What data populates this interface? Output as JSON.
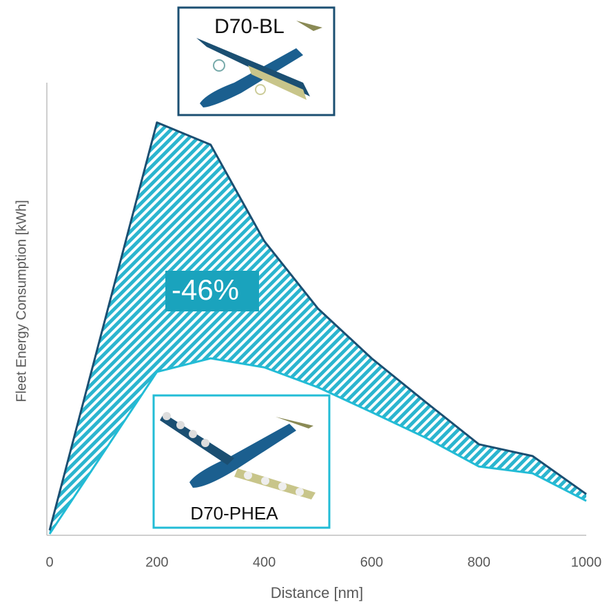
{
  "chart_data": {
    "type": "line",
    "x_label": "Distance [nm]",
    "y_label": "Fleet Energy Consumption [kWh]",
    "x": [
      0,
      200,
      300,
      400,
      500,
      600,
      700,
      800,
      900,
      1000
    ],
    "series": [
      {
        "name": "D70-BL",
        "color": "#1b4f72",
        "values": [
          1.1,
          91.2,
          86.3,
          65.0,
          50.1,
          39.1,
          29.5,
          20.1,
          17.5,
          9.1
        ]
      },
      {
        "name": "D70-PHEA",
        "color": "#22bcd6",
        "values": [
          0.3,
          36.1,
          39.1,
          37.1,
          32.7,
          27.2,
          21.6,
          15.2,
          13.7,
          7.6
        ]
      }
    ],
    "annotation": "-46%",
    "xlim": [
      0,
      1000
    ],
    "xticks": [
      0,
      200,
      400,
      600,
      800,
      1000
    ],
    "ylim": [
      0,
      100
    ],
    "hatch_color": "#2bb5cf"
  }
}
